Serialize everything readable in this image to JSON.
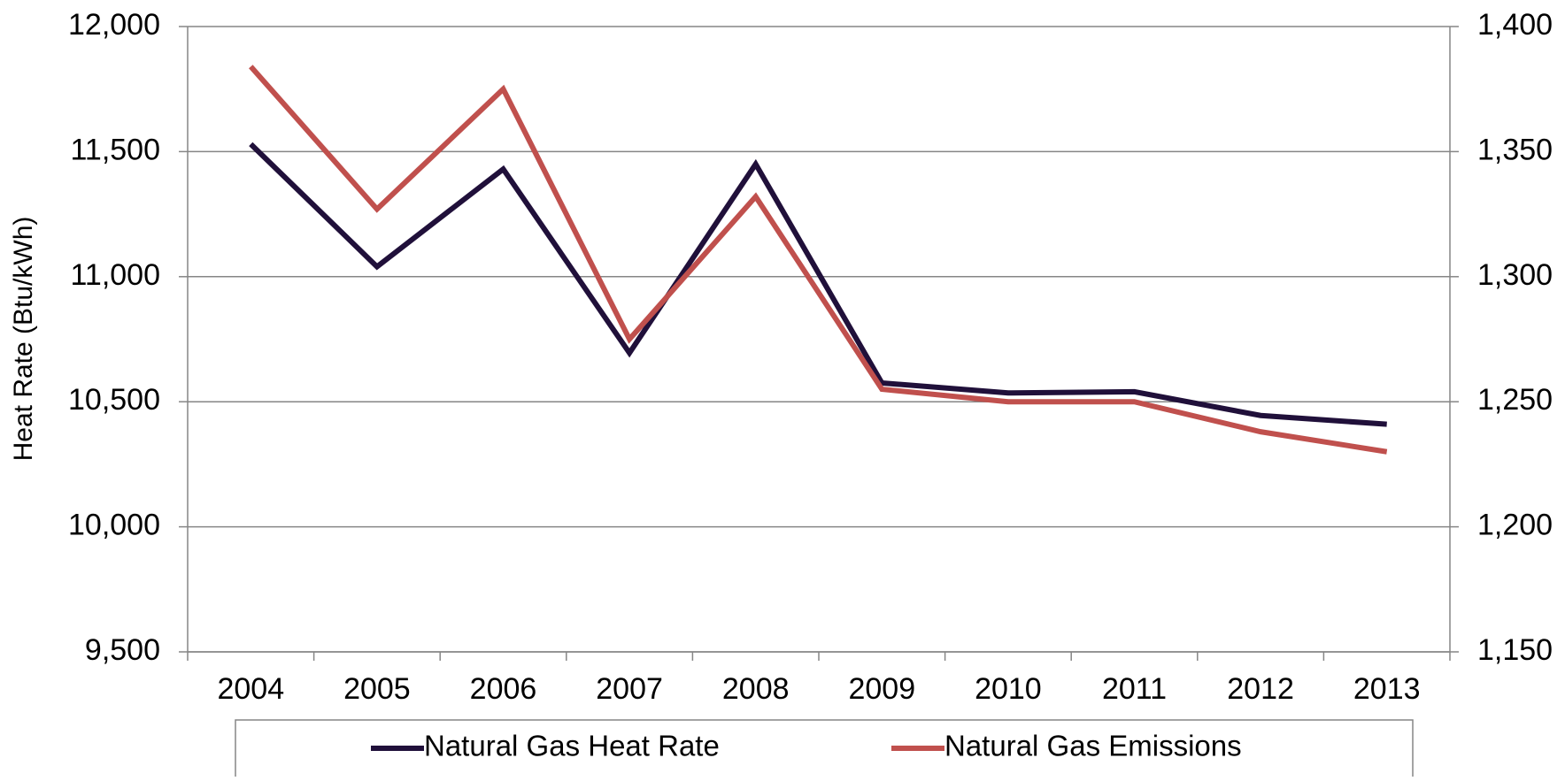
{
  "chart_data": {
    "type": "line",
    "y_label": "Heat Rate (Btu/kWh)",
    "categories": [
      "2004",
      "2005",
      "2006",
      "2007",
      "2008",
      "2009",
      "2010",
      "2011",
      "2012",
      "2013"
    ],
    "series": [
      {
        "name": "Natural Gas Heat Rate",
        "color": "#20103a",
        "values": [
          11530,
          11040,
          11430,
          10695,
          11450,
          10575,
          10535,
          10540,
          10445,
          10410
        ]
      },
      {
        "name": "Natural Gas Emissions",
        "color": "#c0504d",
        "axis": "y2",
        "values": [
          1384,
          1327,
          1375,
          1275,
          1332,
          1255,
          1250,
          1250,
          1238,
          1230
        ]
      }
    ],
    "ylim": [
      9500,
      12000
    ],
    "yticks": [
      {
        "value": 9500,
        "label": "9,500"
      },
      {
        "value": 10000,
        "label": "10,000"
      },
      {
        "value": 10500,
        "label": "10,500"
      },
      {
        "value": 11000,
        "label": "11,000"
      },
      {
        "value": 11500,
        "label": "11,500"
      },
      {
        "value": 12000,
        "label": "12,000"
      }
    ],
    "y2lim": [
      1150,
      1400
    ],
    "y2ticks": [
      {
        "value": 1150,
        "label": "1,150"
      },
      {
        "value": 1200,
        "label": "1,200"
      },
      {
        "value": 1250,
        "label": "1,250"
      },
      {
        "value": 1300,
        "label": "1,300"
      },
      {
        "value": 1350,
        "label": "1,350"
      },
      {
        "value": 1400,
        "label": "1,400"
      }
    ],
    "grid": true,
    "legend": "bottom"
  }
}
